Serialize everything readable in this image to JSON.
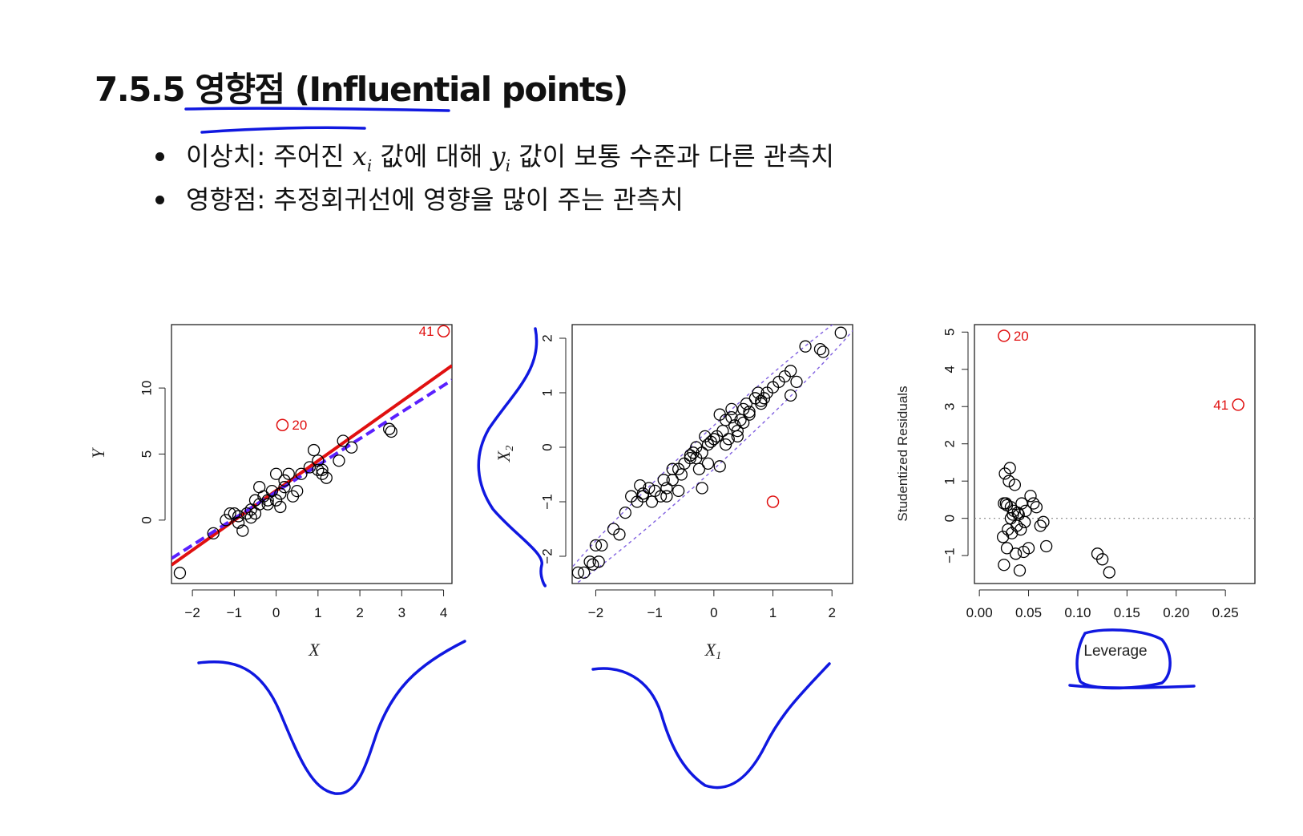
{
  "title": "7.5.5 영향점 (Influential points)",
  "bullets": [
    {
      "pre": "이상치: 주어진 ",
      "var1": "x",
      "sub1": "i",
      "mid": " 값에 대해 ",
      "var2": "y",
      "sub2": "i",
      "post": " 값이 보통 수준과 다른 관측치"
    },
    {
      "text": "영향점: 추정회귀선에 영향을 많이 주는 관측치"
    }
  ],
  "colors": {
    "points": "#000000",
    "highlight": "#e01010",
    "fit_line": "#e01010",
    "fit_dashed": "#5a20ff",
    "ellipse": "#8060e0",
    "ink": "#1018e0"
  },
  "chart_data": [
    {
      "type": "scatter",
      "xlabel": "X",
      "ylabel": "Y",
      "xlim": [
        -2.5,
        4.2
      ],
      "ylim": [
        -4.8,
        14.8
      ],
      "xticks": [
        "-2",
        "-1",
        "0",
        "1",
        "2",
        "3",
        "4"
      ],
      "yticks": [
        "0",
        "5",
        "10"
      ],
      "points_x": [
        -2.3,
        -1.5,
        -1.2,
        -1.1,
        -0.9,
        -0.8,
        -0.7,
        -0.6,
        -0.5,
        -0.5,
        -0.4,
        -0.3,
        -0.2,
        -0.1,
        0,
        0,
        0.1,
        0.2,
        0.3,
        0.5,
        0.6,
        0.8,
        0.9,
        1.0,
        1.1,
        1.2,
        1.5,
        1.6,
        1.8,
        -1,
        -0.6,
        -0.9,
        0.1,
        -0.2,
        0.4,
        1,
        -0.4,
        2.7,
        2.75,
        1.1,
        0.2
      ],
      "points_y": [
        -4,
        -1,
        0,
        0.5,
        -0.2,
        -0.8,
        0.5,
        0.8,
        0.5,
        1.5,
        2.5,
        1.8,
        1.2,
        2.2,
        3.5,
        1.5,
        2.0,
        3.0,
        3.5,
        2.2,
        3.5,
        4.0,
        5.3,
        4.5,
        3.5,
        3.2,
        4.5,
        6.0,
        5.5,
        0.5,
        0.2,
        0.3,
        1,
        1.5,
        1.8,
        3.8,
        1.2,
        6.9,
        6.7,
        3.8,
        2.5
      ],
      "highlight": [
        {
          "x": 0.15,
          "y": 7.2,
          "label": "20"
        },
        {
          "x": 4.0,
          "y": 14.3,
          "label": "41"
        }
      ],
      "lines": [
        {
          "style": "solid",
          "x": [
            -2.5,
            4.2
          ],
          "y": [
            -3.4,
            11.7
          ]
        },
        {
          "style": "dashed",
          "x": [
            -2.5,
            4.2
          ],
          "y": [
            -2.9,
            10.6
          ]
        }
      ]
    },
    {
      "type": "scatter",
      "xlabel": "X1",
      "ylabel": "X2",
      "xlim": [
        -2.4,
        2.35
      ],
      "ylim": [
        -2.5,
        2.25
      ],
      "xticks": [
        "-2",
        "-1",
        "0",
        "1",
        "2"
      ],
      "yticks": [
        "-2",
        "-1",
        "0",
        "1",
        "2"
      ],
      "points_x": [
        -2.3,
        -2.2,
        -2.1,
        -2.0,
        -2.05,
        -1.95,
        -1.9,
        -1.7,
        -1.6,
        -1.5,
        -1.4,
        -1.3,
        -1.25,
        -1.2,
        -1.1,
        -1.05,
        -1.0,
        -0.9,
        -0.85,
        -0.8,
        -0.7,
        -0.6,
        -0.55,
        -0.5,
        -0.4,
        -0.35,
        -0.3,
        -0.25,
        -0.2,
        -0.15,
        -0.1,
        -0.05,
        0,
        0.05,
        0.1,
        0.15,
        0.2,
        0.25,
        0.3,
        0.35,
        0.4,
        0.45,
        0.5,
        0.55,
        0.6,
        0.7,
        0.75,
        0.8,
        0.85,
        0.9,
        1.0,
        1.1,
        1.2,
        1.3,
        1.4,
        1.55,
        1.8,
        1.85,
        2.15,
        -0.8,
        -0.6,
        -0.3,
        0.2,
        0.4,
        -0.2,
        0.3,
        0.8,
        1.3,
        -1.2,
        -0.7,
        0.6,
        -0.4,
        0.5,
        0.1,
        -0.1
      ],
      "points_y": [
        -2.3,
        -2.3,
        -2.1,
        -1.8,
        -2.15,
        -2.1,
        -1.8,
        -1.5,
        -1.6,
        -1.2,
        -0.9,
        -1.0,
        -0.7,
        -0.9,
        -0.75,
        -1.0,
        -0.8,
        -0.9,
        -0.6,
        -0.75,
        -0.6,
        -0.4,
        -0.5,
        -0.3,
        -0.2,
        -0.1,
        0,
        -0.4,
        -0.1,
        0.2,
        -0.3,
        0.1,
        0.15,
        0.2,
        0.6,
        0.3,
        0.5,
        0.15,
        0.7,
        0.4,
        0.2,
        0.5,
        0.7,
        0.8,
        0.6,
        0.9,
        1.0,
        0.8,
        0.9,
        1.0,
        1.1,
        1.2,
        1.3,
        1.4,
        1.2,
        1.85,
        1.8,
        1.75,
        2.1,
        -0.9,
        -0.8,
        -0.2,
        0.05,
        0.3,
        -0.75,
        0.55,
        0.85,
        0.95,
        -0.85,
        -0.4,
        0.65,
        -0.15,
        0.45,
        -0.35,
        0.05
      ],
      "highlight": [
        {
          "x": 1.0,
          "y": -1.0,
          "label": ""
        }
      ],
      "ellipse_slope": 0.95
    },
    {
      "type": "scatter",
      "xlabel": "Leverage",
      "ylabel": "Studentized Residuals",
      "xlim": [
        -0.005,
        0.28
      ],
      "ylim": [
        -1.75,
        5.2
      ],
      "xticks": [
        "0.00",
        "0.05",
        "0.10",
        "0.15",
        "0.20",
        "0.25"
      ],
      "yticks": [
        "-1",
        "0",
        "1",
        "2",
        "3",
        "4",
        "5"
      ],
      "points_x": [
        0.025,
        0.026,
        0.028,
        0.03,
        0.032,
        0.033,
        0.035,
        0.036,
        0.038,
        0.04,
        0.041,
        0.043,
        0.045,
        0.047,
        0.05,
        0.052,
        0.055,
        0.058,
        0.062,
        0.065,
        0.068,
        0.024,
        0.027,
        0.029,
        0.031,
        0.034,
        0.037,
        0.039,
        0.042,
        0.046,
        0.12,
        0.125,
        0.132,
        0.025,
        0.028,
        0.032
      ],
      "points_y": [
        0.4,
        1.2,
        -0.8,
        1.0,
        0.3,
        -0.4,
        0.2,
        0.9,
        -0.2,
        0.1,
        -1.4,
        0.4,
        -0.9,
        0.2,
        -0.8,
        0.6,
        0.4,
        0.3,
        -0.2,
        -0.1,
        -0.75,
        -0.5,
        0.4,
        -0.3,
        1.35,
        0.1,
        -0.95,
        0.15,
        -0.3,
        -0.1,
        -0.95,
        -1.1,
        -1.45,
        -1.25,
        0.35,
        0.0
      ],
      "highlight": [
        {
          "x": 0.025,
          "y": 4.9,
          "label": "20"
        },
        {
          "x": 0.263,
          "y": 3.05,
          "label": "41"
        }
      ],
      "hline": 0
    }
  ]
}
